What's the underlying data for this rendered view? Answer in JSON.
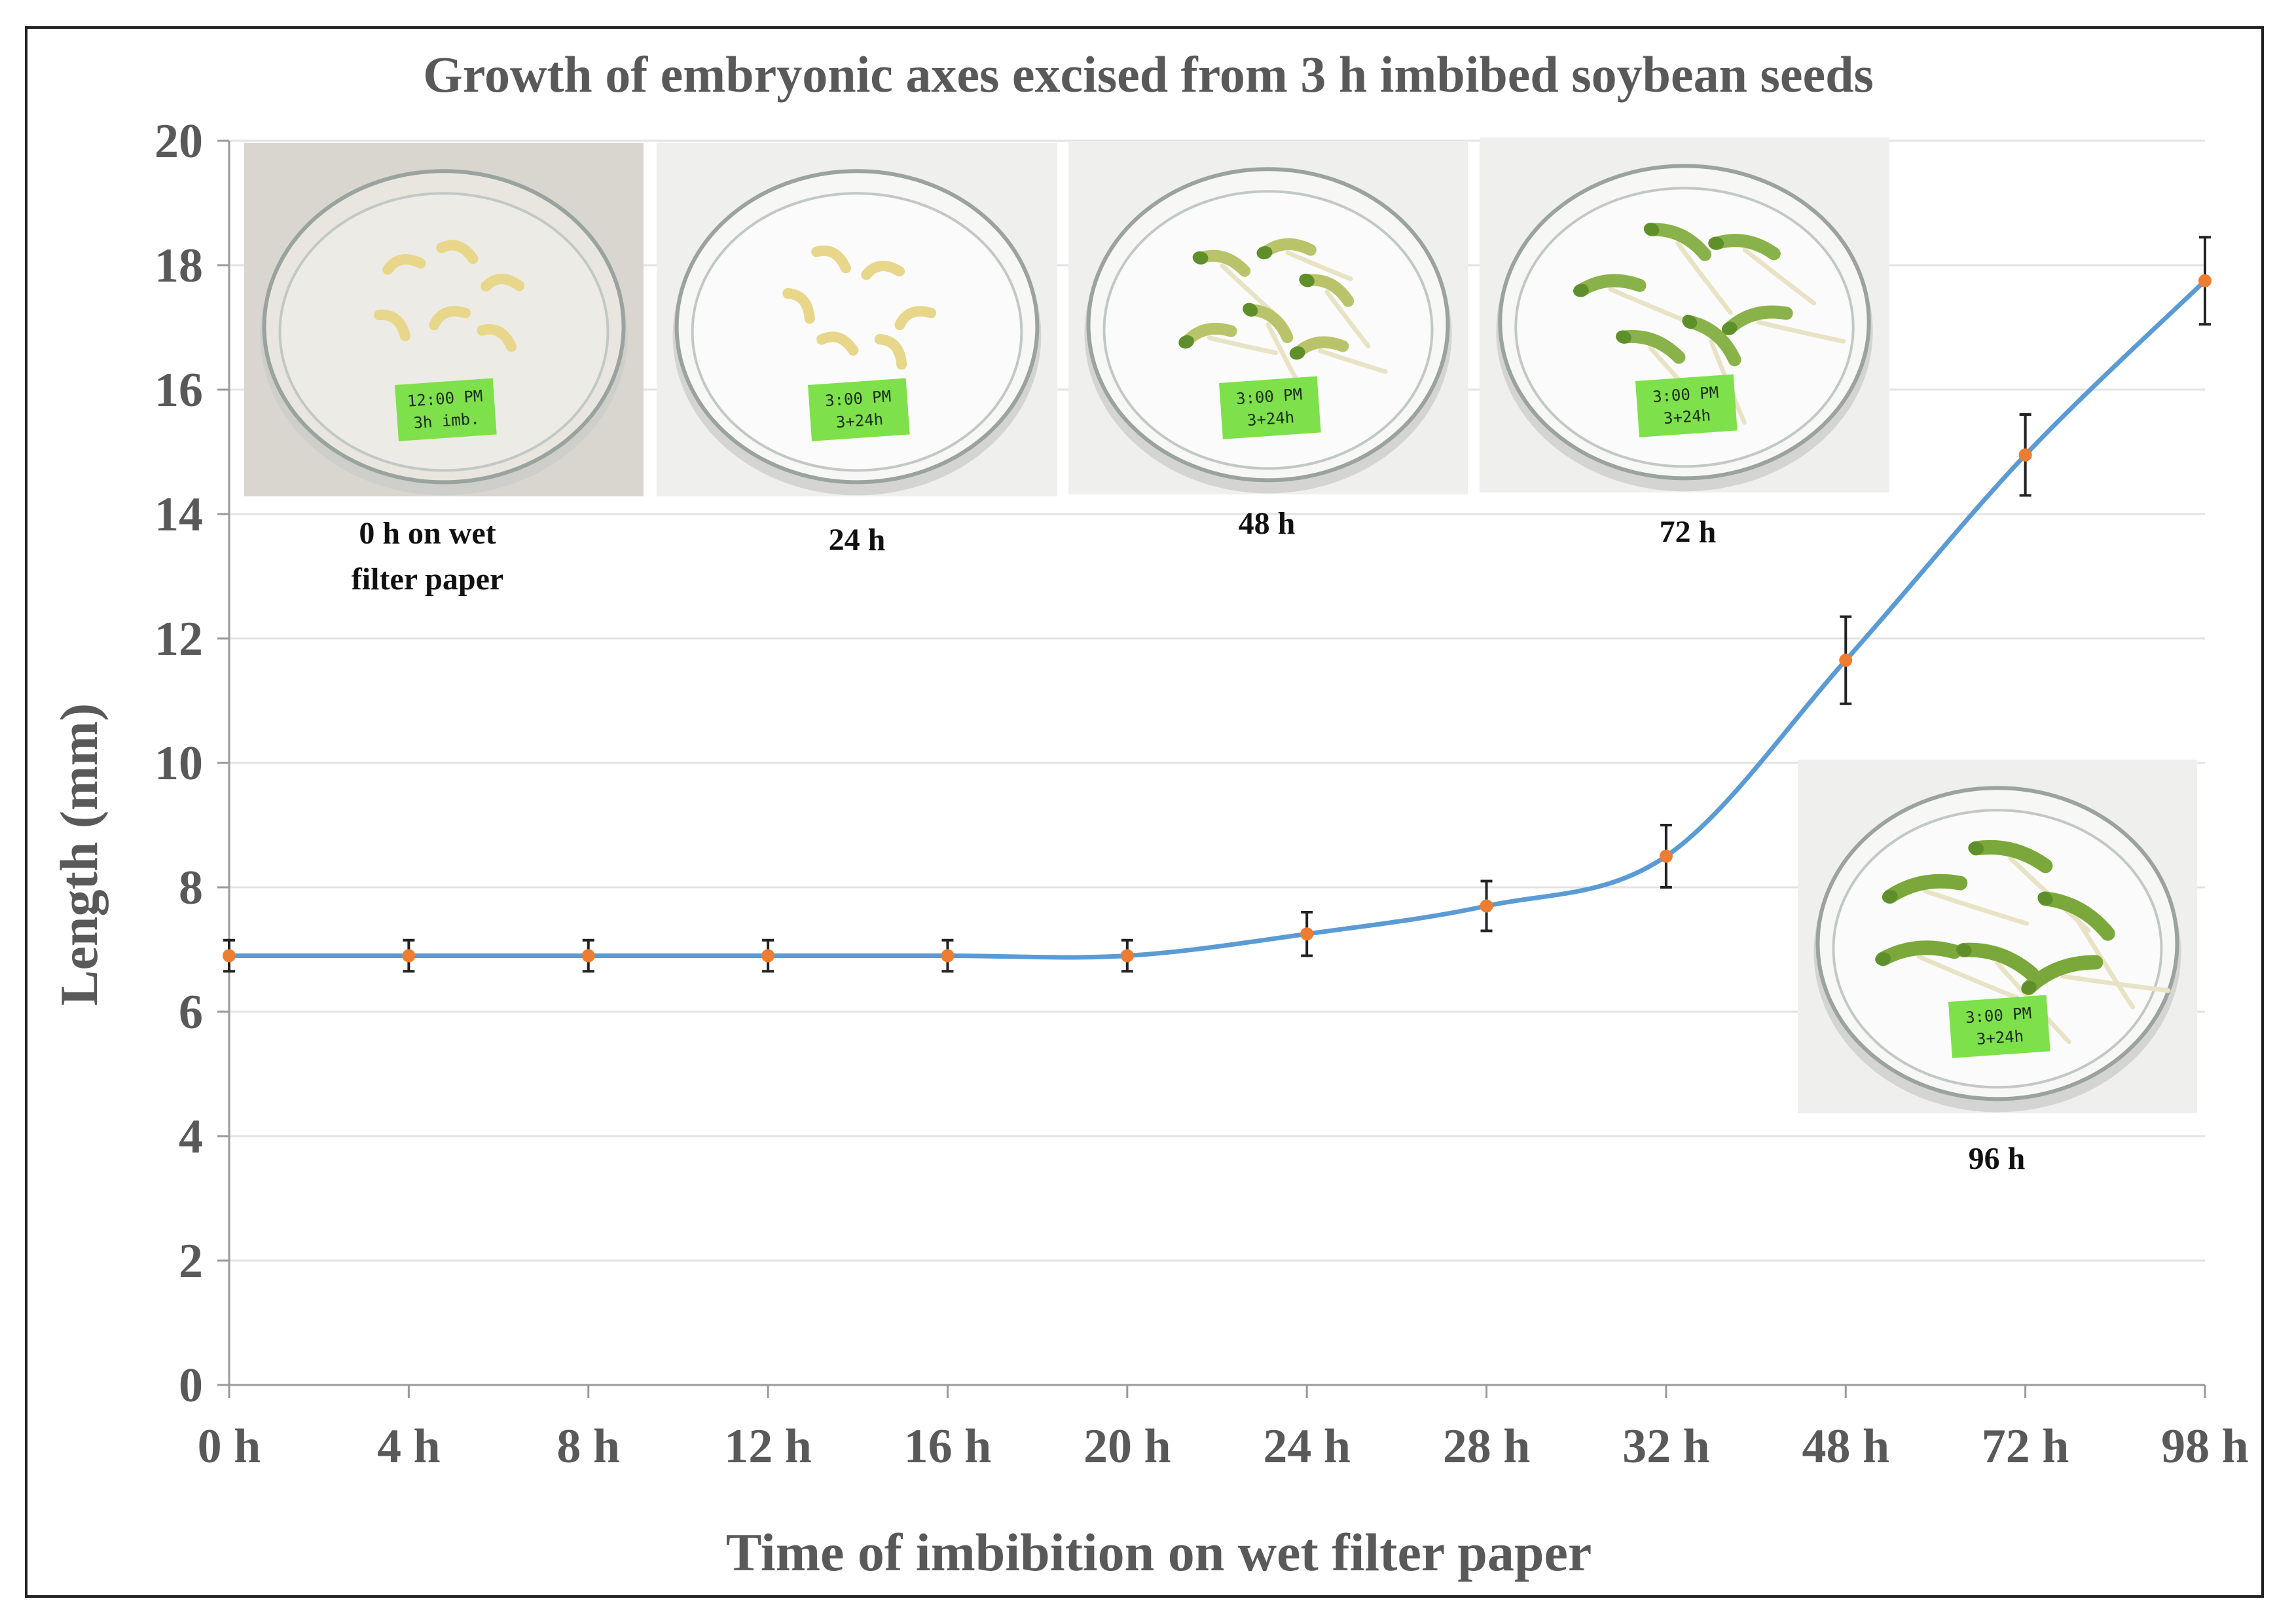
{
  "chart_data": {
    "type": "line",
    "title": "Growth of embryonic axes excised from 3 h imbibed soybean seeds",
    "xlabel": "Time of imbibition on wet filter paper",
    "ylabel": "Length (mm)",
    "ylim": [
      0,
      20
    ],
    "yticks": [
      "0",
      "2",
      "4",
      "6",
      "8",
      "10",
      "12",
      "14",
      "16",
      "18",
      "20"
    ],
    "categories": [
      "0 h",
      "4 h",
      "8 h",
      "12 h",
      "16 h",
      "20 h",
      "24 h",
      "28 h",
      "32 h",
      "48 h",
      "72 h",
      "98 h"
    ],
    "values": [
      6.9,
      6.9,
      6.9,
      6.9,
      6.9,
      6.9,
      7.25,
      7.7,
      8.5,
      11.65,
      14.95,
      17.75
    ],
    "errors": [
      0.25,
      0.25,
      0.25,
      0.25,
      0.25,
      0.25,
      0.35,
      0.4,
      0.5,
      0.7,
      0.65,
      0.7
    ],
    "grid": "horizontal",
    "line_color": "#5b9bd5",
    "marker_color": "#ed7d31",
    "error_color": "#222222",
    "axis_text_color": "#595959"
  },
  "photos": [
    {
      "caption_lines": [
        "0 h on wet",
        "filter paper"
      ],
      "label_lines": [
        "12:00 PM",
        "3h imb."
      ],
      "paper": true,
      "axis_color": "#e8d68a",
      "green": 0
    },
    {
      "caption_lines": [
        "24 h"
      ],
      "label_lines": [
        "3:00 PM",
        "3+24h"
      ],
      "paper": false,
      "axis_color": "#e8d68a",
      "green": 0
    },
    {
      "caption_lines": [
        "48 h"
      ],
      "label_lines": [
        "3:00 PM",
        "3+24h"
      ],
      "paper": false,
      "axis_color": "#b9c46a",
      "green": 1
    },
    {
      "caption_lines": [
        "72 h"
      ],
      "label_lines": [
        "3:00 PM",
        "3+24h"
      ],
      "paper": false,
      "axis_color": "#8ab24a",
      "green": 2
    },
    {
      "caption_lines": [
        "96 h"
      ],
      "label_lines": [
        "3:00 PM",
        "3+24h"
      ],
      "paper": false,
      "axis_color": "#7aa83a",
      "green": 3
    }
  ]
}
